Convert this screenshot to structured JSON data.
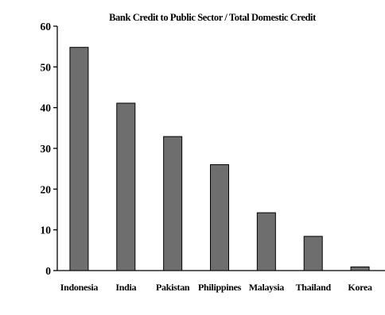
{
  "chart_data": {
    "type": "bar",
    "title": "Bank Credit to Public Sector / Total Domestic Credit",
    "xlabel": "",
    "ylabel": "",
    "categories": [
      "Indonesia",
      "India",
      "Pakistan",
      "Philippines",
      "Malaysia",
      "Thailand",
      "Korea"
    ],
    "values": [
      54.8,
      41.1,
      32.9,
      26.0,
      14.2,
      8.4,
      0.9
    ],
    "ylim": [
      0,
      60
    ],
    "yticks": [
      "0",
      "10",
      "20",
      "30",
      "40",
      "50",
      "60"
    ],
    "grid": false,
    "legend": "none",
    "bar_color": "#6e6e6e"
  }
}
